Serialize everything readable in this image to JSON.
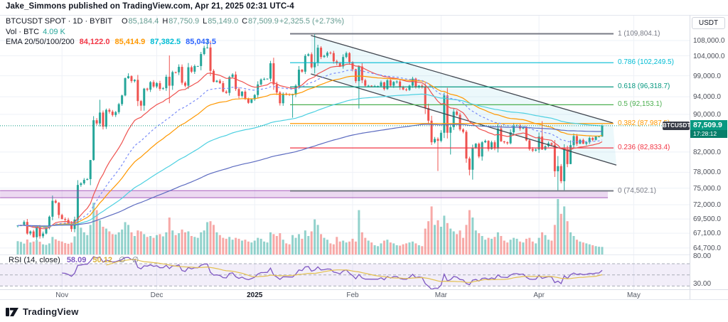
{
  "published_line": "Jake_Simmons published on TradingView.com, Apr 21, 2025 02:31 UTC-4",
  "watermark": "TradingView",
  "legend": {
    "symbol": "BTCUSDT SPOT · 1D · BYBIT",
    "ohlc": {
      "o_label": "O",
      "o": "85,184.4",
      "h_label": "H",
      "h": "87,750.9",
      "l_label": "L",
      "l": "85,149.0",
      "c_label": "C",
      "c": "87,509.9",
      "change": "+2,325.5 (+2.73%)"
    },
    "vol_label": "Vol · BTC",
    "vol_value": "4.09 K",
    "ema_label": "EMA 20/50/100/200",
    "ema_values": [
      {
        "text": "84,122.0",
        "color": "#f23645"
      },
      {
        "text": "85,414.9",
        "color": "#ff9800"
      },
      {
        "text": "87,382.5",
        "color": "#00bcd4"
      },
      {
        "text": "85,043.5",
        "color": "#2962ff"
      }
    ]
  },
  "rsi_legend": {
    "label": "RSI (14, close)",
    "value": "58.09",
    "ma_value": "50.12",
    "empty1": "∅",
    "empty2": "∅"
  },
  "price_axis": {
    "currency": "USDT",
    "ticks": [
      {
        "text": "108,000.0",
        "price": 108000
      },
      {
        "text": "104,000.0",
        "price": 104000
      },
      {
        "text": "99,000.0",
        "price": 99000
      },
      {
        "text": "94,000.0",
        "price": 94000
      },
      {
        "text": "90,000.0",
        "price": 90000
      },
      {
        "text": "82,000.0",
        "price": 82000
      },
      {
        "text": "78,000.0",
        "price": 78000
      },
      {
        "text": "75,000.0",
        "price": 75000
      },
      {
        "text": "72,000.0",
        "price": 72000
      },
      {
        "text": "69,500.0",
        "price": 69500
      },
      {
        "text": "67,100.0",
        "price": 67100
      },
      {
        "text": "64,700.0",
        "price": 64700
      }
    ]
  },
  "rsi_axis_ticks": [
    {
      "text": "80.00",
      "value": 80
    },
    {
      "text": "30.00",
      "value": 30
    }
  ],
  "time_axis": {
    "ticks": [
      {
        "label": "Nov",
        "index": 14,
        "bold": false
      },
      {
        "label": "Dec",
        "index": 44,
        "bold": false
      },
      {
        "label": "2025",
        "index": 75,
        "bold": true
      },
      {
        "label": "Feb",
        "index": 106,
        "bold": false
      },
      {
        "label": "Mar",
        "index": 134,
        "bold": false
      },
      {
        "label": "Apr",
        "index": 165,
        "bold": false
      },
      {
        "label": "May",
        "index": 195,
        "bold": false
      }
    ]
  },
  "price_tag": {
    "symbol": "BTCUSDT",
    "price": "87,509.9",
    "countdown": "17:28:12"
  },
  "fib_labels": [
    {
      "text": "1 (109,804.1)",
      "price": 109804.1,
      "color": "#787b86"
    },
    {
      "text": "0.786 (102,249.5)",
      "price": 102249.5,
      "color": "#00bcd4"
    },
    {
      "text": "0.618 (96,318.7)",
      "price": 96318.7,
      "color": "#089981"
    },
    {
      "text": "0.5 (92,153.1)",
      "price": 92153.1,
      "color": "#4caf50"
    },
    {
      "text": "0.382 (87,987.5)",
      "price": 87987.5,
      "color": "#ff9800"
    },
    {
      "text": "0.236 (82,833.4)",
      "price": 82833.4,
      "color": "#f23645"
    },
    {
      "text": "0 (74,502.1)",
      "price": 74502.1,
      "color": "#787b86"
    }
  ],
  "chart_data": {
    "type": "candlestick",
    "symbol": "BTCUSDT",
    "exchange": "BYBIT",
    "interval": "1D",
    "start_date": "2024-10-18",
    "end_date": "2025-04-21",
    "price_range_visible": [
      63450,
      114850
    ],
    "current_price": 87509.9,
    "candle_up_color": "#26a69a",
    "candle_down_color": "#ef5350",
    "first_open": 68300,
    "closes": [
      68400,
      68420,
      69000,
      67050,
      67400,
      66450,
      68200,
      66600,
      67050,
      68000,
      69900,
      72700,
      72350,
      70200,
      69500,
      69350,
      68750,
      67800,
      69400,
      75600,
      75900,
      76550,
      76700,
      80400,
      88700,
      88000,
      90400,
      87300,
      91000,
      90600,
      89850,
      90500,
      92300,
      94300,
      98400,
      98900,
      97700,
      98000,
      93000,
      91950,
      95900,
      95650,
      97450,
      96400,
      97200,
      95850,
      96000,
      98750,
      96600,
      99900,
      99850,
      101200,
      97300,
      96600,
      101100,
      100000,
      101400,
      101400,
      104450,
      106050,
      106150,
      100200,
      97500,
      97800,
      97200,
      95200,
      94900,
      98700,
      99300,
      95800,
      94200,
      95200,
      93500,
      92600,
      93400,
      94400,
      96900,
      98100,
      98200,
      98300,
      102100,
      96900,
      95000,
      92500,
      94700,
      94600,
      94500,
      94500,
      96600,
      100500,
      100000,
      104000,
      104400,
      101100,
      102300,
      106100,
      103700,
      104000,
      104800,
      104700,
      102600,
      102100,
      101300,
      103700,
      104700,
      102400,
      100600,
      97700,
      101300,
      97900,
      96600,
      96600,
      96500,
      96500,
      96500,
      97400,
      95800,
      97900,
      96600,
      97500,
      97600,
      96200,
      95700,
      95600,
      96600,
      98300,
      96200,
      96600,
      96300,
      91400,
      88600,
      84000,
      84700,
      84300,
      86000,
      94300,
      86000,
      87200,
      90600,
      89900,
      86700,
      86200,
      80700,
      78500,
      82900,
      83700,
      81100,
      84000,
      84300,
      82600,
      84000,
      82700,
      86900,
      84200,
      84000,
      83800,
      86100,
      87500,
      87500,
      86900,
      87200,
      84400,
      82600,
      82300,
      82500,
      85200,
      82500,
      83200,
      83800,
      83500,
      78200,
      79200,
      76300,
      82600,
      79600,
      83400,
      85300,
      83700,
      84500,
      83700,
      84000,
      84900,
      84500,
      85200,
      85200,
      87510
    ],
    "wicks": {
      "11": [
        73650,
        null
      ],
      "19": [
        76500,
        68800
      ],
      "24": [
        89600,
        80250
      ],
      "26": [
        93300,
        null
      ],
      "35": [
        99600,
        null
      ],
      "39": [
        null,
        90800
      ],
      "48": [
        104088,
        92510
      ],
      "60": [
        108260,
        null
      ],
      "80": [
        102700,
        null
      ],
      "87": [
        null,
        89256
      ],
      "94": [
        109804,
        99550
      ],
      "108": [
        null,
        91300
      ],
      "133": [
        null,
        78250
      ],
      "135": [
        95000,
        null
      ],
      "137": [
        null,
        81500
      ],
      "143": [
        null,
        77420
      ],
      "144": [
        null,
        76600
      ],
      "166": [
        88500,
        null
      ],
      "171": [
        81200,
        74502
      ],
      "173": [
        83600,
        74600
      ],
      "185": [
        87750.9,
        85149.0
      ]
    },
    "volumes_k": [
      7.2,
      6.8,
      5.9,
      8.1,
      6.5,
      7.0,
      7.8,
      6.9,
      5.5,
      5.2,
      6.0,
      9.5,
      8.2,
      7.4,
      7.0,
      6.2,
      5.8,
      6.4,
      9.8,
      22.0,
      14.5,
      12.0,
      10.5,
      16.0,
      28.0,
      24.0,
      18.5,
      15.0,
      14.0,
      12.5,
      11.0,
      10.8,
      12.0,
      13.5,
      17.5,
      16.0,
      12.0,
      10.0,
      13.0,
      12.5,
      11.0,
      9.5,
      10.0,
      9.0,
      10.5,
      11.0,
      9.8,
      12.0,
      20.0,
      13.0,
      10.5,
      11.5,
      13.5,
      12.0,
      12.5,
      10.0,
      9.5,
      9.0,
      12.0,
      13.0,
      17.5,
      18.0,
      16.0,
      12.0,
      10.5,
      9.0,
      8.5,
      9.5,
      8.0,
      9.0,
      8.5,
      7.5,
      8.0,
      7.0,
      6.5,
      7.5,
      9.0,
      8.5,
      7.0,
      6.5,
      12.0,
      11.0,
      10.0,
      11.5,
      8.0,
      6.0,
      5.5,
      10.5,
      9.0,
      11.0,
      8.5,
      13.0,
      10.0,
      12.5,
      19.0,
      16.0,
      11.0,
      9.0,
      8.0,
      6.0,
      5.5,
      9.5,
      7.0,
      7.5,
      6.5,
      7.0,
      8.5,
      7.0,
      24.0,
      12.0,
      9.0,
      7.5,
      6.5,
      5.0,
      4.5,
      6.0,
      7.5,
      8.0,
      6.5,
      6.0,
      5.0,
      4.8,
      5.5,
      6.0,
      6.5,
      7.0,
      6.0,
      5.0,
      4.5,
      14.0,
      18.0,
      26.0,
      16.0,
      18.5,
      15.0,
      21.0,
      17.0,
      14.0,
      12.5,
      11.0,
      13.0,
      9.0,
      16.0,
      24.0,
      20.0,
      13.0,
      11.5,
      10.0,
      8.0,
      9.0,
      8.5,
      9.5,
      12.0,
      10.0,
      7.5,
      6.5,
      8.0,
      9.0,
      8.5,
      7.0,
      6.5,
      8.5,
      9.0,
      7.0,
      6.0,
      9.0,
      12.0,
      10.5,
      8.0,
      7.5,
      16.0,
      30.0,
      22.0,
      26.0,
      18.0,
      12.0,
      10.0,
      8.0,
      7.0,
      6.5,
      6.0,
      5.5,
      5.0,
      4.5,
      4.2,
      4.09
    ],
    "volume_max_k": 30,
    "volume_up_color": "rgba(38,166,154,0.5)",
    "volume_down_color": "rgba(239,83,80,0.5)",
    "emas": [
      {
        "period": 20,
        "color": "#ef5350",
        "dashed": false
      },
      {
        "period": 50,
        "color": "#ff9800",
        "dashed": false
      },
      {
        "period": 100,
        "color": "#4dd0e1",
        "dashed": false
      },
      {
        "period": 200,
        "color": "#5c6bc0",
        "dashed": false
      },
      {
        "period": 35,
        "color": "#7a8cf8",
        "dashed": true
      }
    ],
    "fib": {
      "start_index": 86.2,
      "end_index": 188.6,
      "levels": [
        {
          "level": 1,
          "price": 109804.1,
          "color": "#787b86",
          "width": 2
        },
        {
          "level": 0.786,
          "price": 102249.5,
          "color": "#00bcd4",
          "width": 1.2
        },
        {
          "level": 0.618,
          "price": 96318.7,
          "color": "#089981",
          "width": 1.2
        },
        {
          "level": 0.5,
          "price": 92153.1,
          "color": "#4caf50",
          "width": 1.2
        },
        {
          "level": 0.382,
          "price": 87987.5,
          "color": "#ff9800",
          "width": 1.2
        },
        {
          "level": 0.236,
          "price": 82833.4,
          "color": "#f23645",
          "width": 1.2
        },
        {
          "level": 0,
          "price": 74502.1,
          "color": "#787b86",
          "width": 2
        }
      ]
    },
    "channel": {
      "upper": [
        [
          92.8,
          109350
        ],
        [
          188.4,
          88100
        ]
      ],
      "lower": [
        [
          92.8,
          99450
        ],
        [
          189.5,
          79400
        ]
      ],
      "stroke": "#41464f",
      "fill": "rgba(70,190,215,0.10)"
    },
    "band": {
      "price_top": 74550,
      "price_bottom": 73250,
      "x_start_index": -5.6,
      "x_end_index": 186.8,
      "fill": "rgba(170,80,190,0.22)",
      "stroke": "rgba(150,60,175,0.6)"
    },
    "rsi": {
      "period": 14,
      "current": 58.09,
      "ma_current": 50.12,
      "dashed_levels": [
        70,
        50,
        30
      ],
      "band": [
        30,
        70
      ],
      "band_fill": "rgba(126,87,194,0.10)",
      "line_color": "#7e57c2",
      "ma_color": "#e3c04f"
    }
  }
}
